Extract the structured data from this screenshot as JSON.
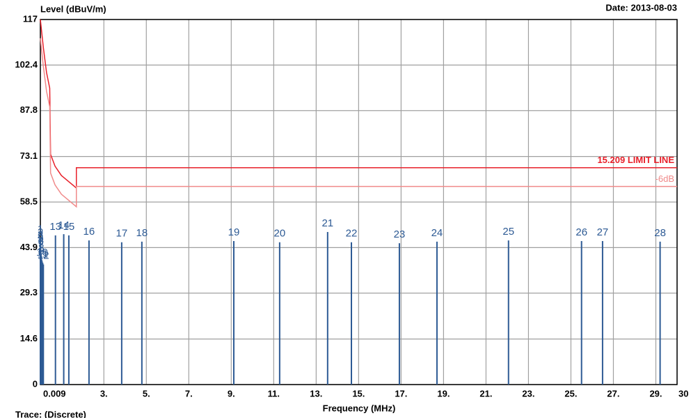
{
  "chart_data": {
    "type": "line",
    "y_label": "Level (dBuV/m)",
    "date": "Date: 2013-08-03",
    "x_label": "Frequency (MHz)",
    "trace": "Trace:  (Discrete)",
    "xlim": [
      0.009,
      30
    ],
    "ylim": [
      0,
      117
    ],
    "xticks": [
      0.009,
      {
        "value": 3,
        "label": "3."
      },
      {
        "value": 5,
        "label": "5."
      },
      {
        "value": 7,
        "label": "7."
      },
      {
        "value": 9,
        "label": "9."
      },
      {
        "value": 11,
        "label": "11."
      },
      {
        "value": 13,
        "label": "13."
      },
      {
        "value": 15,
        "label": "15."
      },
      {
        "value": 17,
        "label": "17."
      },
      {
        "value": 19,
        "label": "19."
      },
      {
        "value": 21,
        "label": "21."
      },
      {
        "value": 23,
        "label": "23."
      },
      {
        "value": 25,
        "label": "25."
      },
      {
        "value": 27,
        "label": "27."
      },
      {
        "value": 29,
        "label": "29."
      },
      30
    ],
    "yticks": [
      0,
      14.6,
      29.3,
      43.9,
      58.5,
      73.1,
      87.8,
      102.4,
      117
    ],
    "grid": true,
    "series": [
      {
        "name": "15.209 LIMIT LINE",
        "color": "#e8202a",
        "x": [
          0.009,
          0.15,
          0.3,
          0.45,
          0.49,
          0.7,
          1.0,
          1.705,
          1.705,
          30
        ],
        "values": [
          117,
          108,
          100,
          95,
          73.8,
          70,
          67,
          63,
          69.5,
          69.5
        ]
      },
      {
        "name": "-6dB",
        "color": "#f08a8a",
        "x": [
          0.009,
          0.15,
          0.3,
          0.45,
          0.49,
          0.7,
          1.0,
          1.705,
          1.705,
          30
        ],
        "values": [
          111,
          102,
          94,
          89,
          67.8,
          64,
          61,
          57,
          63.5,
          63.5
        ]
      }
    ],
    "markers": {
      "color": "#2d5a94",
      "labels": [
        "1",
        "2",
        "3",
        "4",
        "5",
        "6",
        "7",
        "8",
        "9",
        "10",
        "11",
        "12",
        "13",
        "14",
        "15",
        "16",
        "17",
        "18",
        "19",
        "20",
        "21",
        "22",
        "23",
        "24",
        "25",
        "26",
        "27",
        "28"
      ],
      "x": [
        0.009,
        0.012,
        0.015,
        0.02,
        0.025,
        0.03,
        0.04,
        0.05,
        0.07,
        0.09,
        0.12,
        0.15,
        0.72,
        1.11,
        1.35,
        2.3,
        3.84,
        4.79,
        9.12,
        11.28,
        13.54,
        14.66,
        16.92,
        18.69,
        22.06,
        25.5,
        26.49,
        29.2
      ],
      "values": [
        47,
        46,
        45,
        44.5,
        44,
        43,
        42,
        41,
        40,
        39.5,
        39,
        38.5,
        47.8,
        48.2,
        47.8,
        46.2,
        45.6,
        45.8,
        46.0,
        45.6,
        48.9,
        45.6,
        45.3,
        45.8,
        46.2,
        46.0,
        46.0,
        45.8
      ]
    }
  }
}
